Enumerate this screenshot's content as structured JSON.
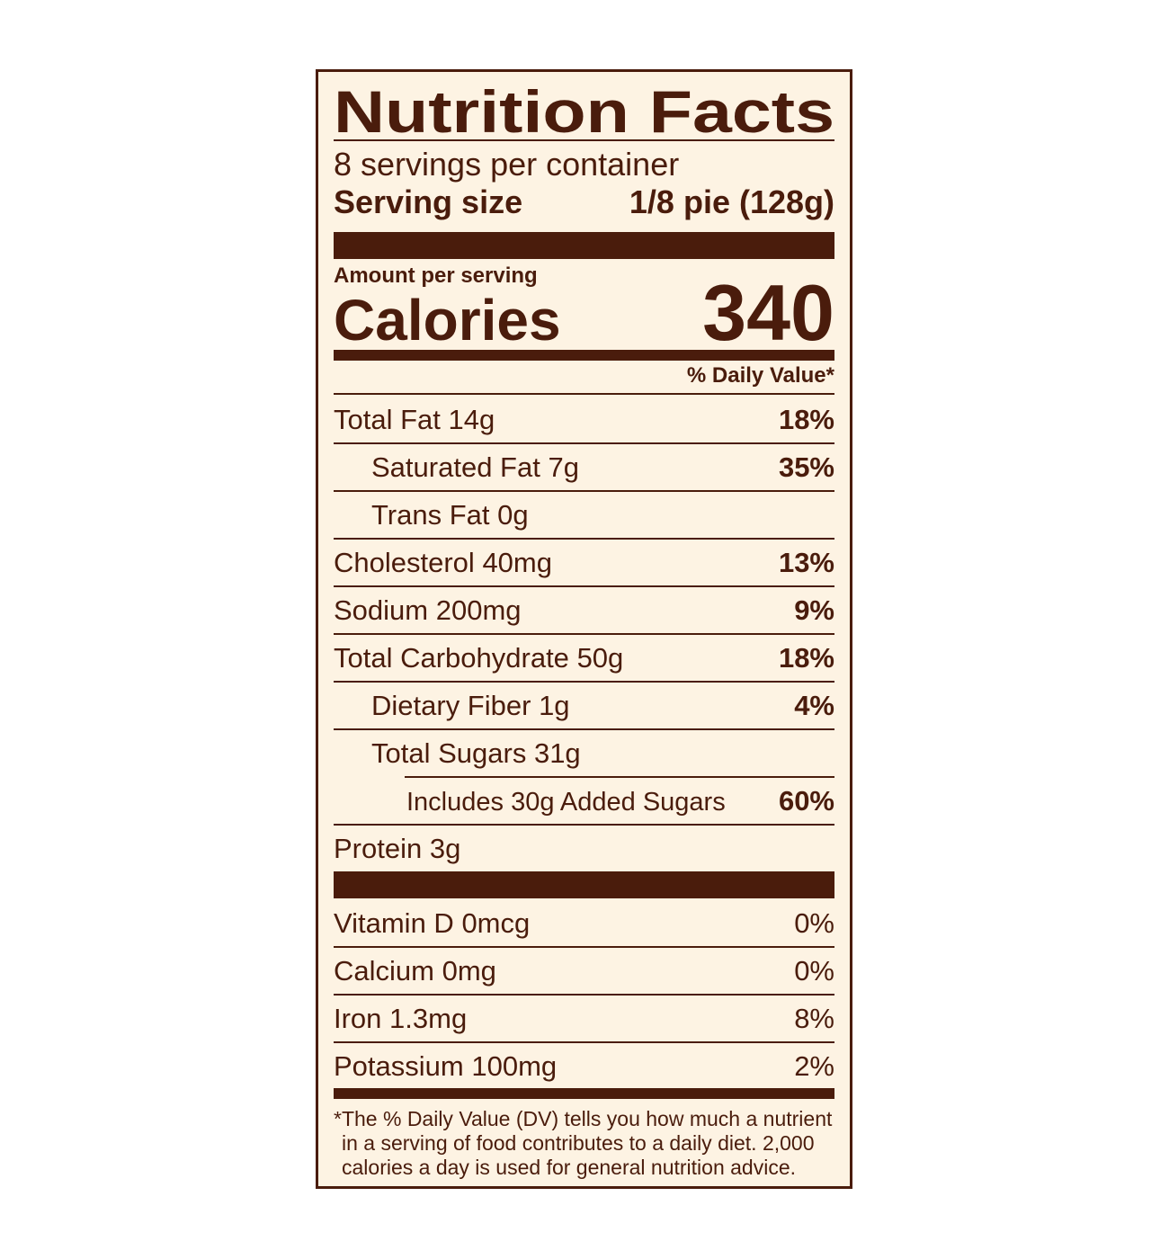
{
  "title": "Nutrition Facts",
  "servings": "8 servings per container",
  "serving_size": {
    "label": "Serving size",
    "value": "1/8 pie (128g)"
  },
  "amount_per_serving": "Amount per serving",
  "calories": {
    "label": "Calories",
    "value": "340"
  },
  "daily_value_header": "% Daily Value*",
  "nutrients": [
    {
      "name": "Total Fat",
      "amount": "14g",
      "dv": "18%"
    },
    {
      "name": "Saturated Fat",
      "amount": "7g",
      "dv": "35%"
    },
    {
      "name": "Trans Fat",
      "amount": "0g"
    },
    {
      "name": "Cholesterol",
      "amount": "40mg",
      "dv": "13%"
    },
    {
      "name": "Sodium",
      "amount": "200mg",
      "dv": "9%"
    },
    {
      "name": "Total Carbohydrate",
      "amount": "50g",
      "dv": "18%"
    },
    {
      "name": "Dietary Fiber",
      "amount": "1g",
      "dv": "4%"
    },
    {
      "name": "Total Sugars",
      "amount": "31g"
    },
    {
      "name": "Includes 30g Added Sugars",
      "dv": "60%"
    },
    {
      "name": "Protein",
      "amount": "3g"
    }
  ],
  "vitamins": [
    {
      "name": "Vitamin D",
      "amount": "0mcg",
      "dv": "0%"
    },
    {
      "name": "Calcium",
      "amount": "0mg",
      "dv": "0%"
    },
    {
      "name": "Iron",
      "amount": "1.3mg",
      "dv": "8%"
    },
    {
      "name": "Potassium",
      "amount": "100mg",
      "dv": "2%"
    }
  ],
  "footnote": [
    "*The % Daily Value (DV) tells you how much a nutrient",
    "in a serving of food contributes to a daily diet. 2,000",
    "calories a day is used for general nutrition advice."
  ]
}
